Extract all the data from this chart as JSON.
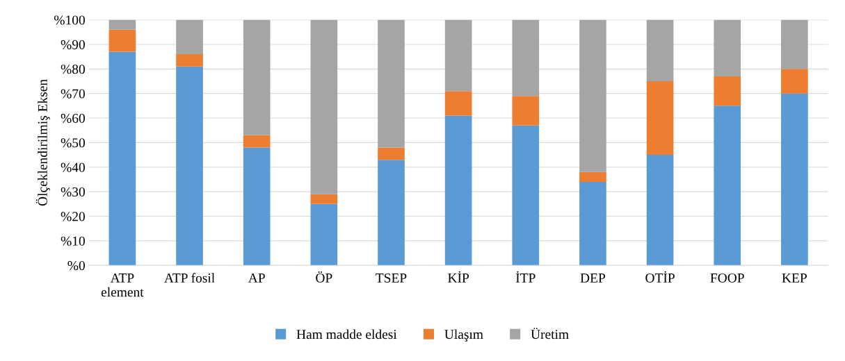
{
  "chart_data": {
    "type": "bar",
    "stacked": true,
    "ylabel": "Ölçeklendirilmiş Eksen",
    "categories": [
      "ATP\nelement",
      "ATP fosil",
      "AP",
      "ÖP",
      "TSEP",
      "KİP",
      "İTP",
      "DEP",
      "OTİP",
      "FOOP",
      "KEP"
    ],
    "series": [
      {
        "name": "Ham madde eldesi",
        "color": "#5b9bd5",
        "values": [
          87,
          81,
          48,
          25,
          43,
          61,
          57,
          34,
          45,
          65,
          70
        ]
      },
      {
        "name": "Ulaşım",
        "color": "#ed7d31",
        "values": [
          9,
          5,
          5,
          4,
          5,
          10,
          12,
          4,
          30,
          12,
          10
        ]
      },
      {
        "name": "Üretim",
        "color": "#a5a5a5",
        "values": [
          4,
          14,
          47,
          71,
          52,
          29,
          31,
          62,
          25,
          23,
          20
        ]
      }
    ],
    "ylim": [
      0,
      100
    ],
    "yticks": [
      {
        "value": 0,
        "label": "%0"
      },
      {
        "value": 10,
        "label": "%10"
      },
      {
        "value": 20,
        "label": "%20"
      },
      {
        "value": 30,
        "label": "%30"
      },
      {
        "value": 40,
        "label": "%40"
      },
      {
        "value": 50,
        "label": "%50"
      },
      {
        "value": 60,
        "label": "%60"
      },
      {
        "value": 70,
        "label": "%70"
      },
      {
        "value": 80,
        "label": "%80"
      },
      {
        "value": 90,
        "label": "%90"
      },
      {
        "value": 100,
        "label": "%100"
      }
    ],
    "grid": "y",
    "legend": "bottom"
  }
}
